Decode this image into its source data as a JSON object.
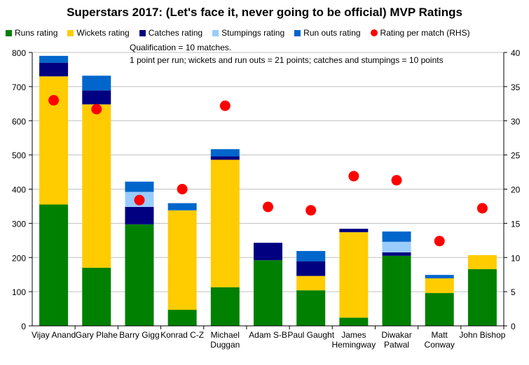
{
  "chart_data": {
    "type": "bar",
    "title": "Superstars 2017: (Let's face it, never going to be official) MVP Ratings",
    "notes": [
      "Qualification = 10 matches.",
      "1 point per run; wickets and run outs = 21 points; catches and stumpings = 10 points"
    ],
    "categories": [
      [
        "Vijay Anand"
      ],
      [
        "Gary Plahe"
      ],
      [
        "Barry Gigg"
      ],
      [
        "Konrad C-Z"
      ],
      [
        "Michael",
        "Duggan"
      ],
      [
        "Adam S-B"
      ],
      [
        "Paul Gaught"
      ],
      [
        "James",
        "Hemingway"
      ],
      [
        "Diwakar",
        "Patwal"
      ],
      [
        "Matt",
        "Conway"
      ],
      [
        "John Bishop"
      ]
    ],
    "series": [
      {
        "name": "Runs rating",
        "color": "#008000",
        "values": [
          355,
          170,
          297,
          47,
          113,
          192,
          104,
          24,
          205,
          96,
          166
        ]
      },
      {
        "name": "Wickets rating",
        "color": "#FFCC00",
        "values": [
          375,
          478,
          0,
          291,
          373,
          0,
          42,
          250,
          0,
          43,
          41
        ]
      },
      {
        "name": "Catches rating",
        "color": "#000080",
        "values": [
          40,
          41,
          51,
          0,
          10,
          51,
          43,
          10,
          10,
          0,
          0
        ]
      },
      {
        "name": "Stumpings rating",
        "color": "#99CCFF",
        "values": [
          0,
          0,
          44,
          0,
          0,
          0,
          0,
          0,
          31,
          0,
          0
        ]
      },
      {
        "name": "Run outs rating",
        "color": "#0066CC",
        "values": [
          20,
          43,
          30,
          21,
          21,
          0,
          30,
          0,
          30,
          10,
          0
        ]
      }
    ],
    "line_series": {
      "name": "Rating per match (RHS)",
      "color": "#FF0000",
      "axis": "right",
      "values": [
        33.0,
        31.7,
        18.4,
        20.0,
        32.2,
        17.4,
        16.9,
        21.9,
        21.3,
        12.4,
        17.2
      ]
    },
    "ylim": [
      0,
      800
    ],
    "yticks": [
      "0",
      "100",
      "200",
      "300",
      "400",
      "500",
      "600",
      "700",
      "800"
    ],
    "y2lim": [
      0,
      40
    ],
    "y2ticks": [
      "0",
      "5",
      "10",
      "15",
      "20",
      "25",
      "30",
      "35",
      "40"
    ],
    "grid": true,
    "legend": "top"
  }
}
